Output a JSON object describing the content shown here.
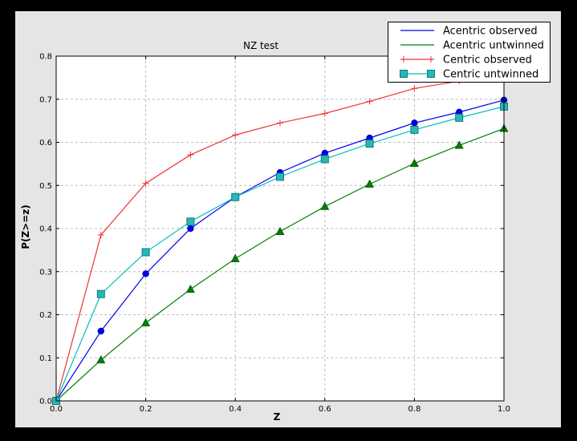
{
  "window": {
    "outer_background": "#000000",
    "figure_background": "#e5e5e5",
    "plot_background": "#ffffff",
    "frame_color": "#000000",
    "grid_color": "#bbbbbb"
  },
  "chart_data": {
    "type": "line",
    "title": "NZ test",
    "xlabel": "Z",
    "ylabel": "P(Z>=z)",
    "xlim": [
      0.0,
      1.0
    ],
    "ylim": [
      0.0,
      0.8
    ],
    "x_ticks": [
      "0.0",
      "0.2",
      "0.4",
      "0.6",
      "0.8",
      "1.0"
    ],
    "y_ticks": [
      "0.0",
      "0.1",
      "0.2",
      "0.3",
      "0.4",
      "0.5",
      "0.6",
      "0.7",
      "0.8"
    ],
    "grid": true,
    "legend_position": "upper right",
    "x": [
      0.0,
      0.1,
      0.2,
      0.3,
      0.4,
      0.5,
      0.6,
      0.7,
      0.8,
      0.9,
      1.0
    ],
    "series": [
      {
        "name": "Acentric observed",
        "line_color": "#0000ee",
        "marker": "circle",
        "marker_fill": "#0000ee",
        "marker_edge": "#0000a0",
        "legend_marker": "none",
        "values": [
          0.0,
          0.162,
          0.295,
          0.4,
          0.473,
          0.53,
          0.575,
          0.61,
          0.645,
          0.67,
          0.698
        ]
      },
      {
        "name": "Acentric untwinned",
        "line_color": "#008000",
        "marker": "triangle",
        "marker_fill": "#008000",
        "marker_edge": "#004d00",
        "legend_marker": "none",
        "values": [
          0.0,
          0.095,
          0.181,
          0.259,
          0.33,
          0.393,
          0.451,
          0.503,
          0.551,
          0.593,
          0.632
        ]
      },
      {
        "name": "Centric observed",
        "line_color": "#ee3333",
        "marker": "plus",
        "marker_fill": "#ee3333",
        "marker_edge": "#ee3333",
        "legend_marker": "ends",
        "values": [
          0.0,
          0.385,
          0.505,
          0.571,
          0.617,
          0.645,
          0.667,
          0.695,
          0.725,
          0.742,
          0.755
        ]
      },
      {
        "name": "Centric untwinned",
        "line_color": "#00bfbf",
        "marker": "square",
        "marker_fill": "#29b6b6",
        "marker_edge": "#0e7c7c",
        "legend_marker": "ends",
        "values": [
          0.0,
          0.248,
          0.345,
          0.416,
          0.473,
          0.52,
          0.561,
          0.597,
          0.629,
          0.657,
          0.683
        ]
      }
    ]
  }
}
